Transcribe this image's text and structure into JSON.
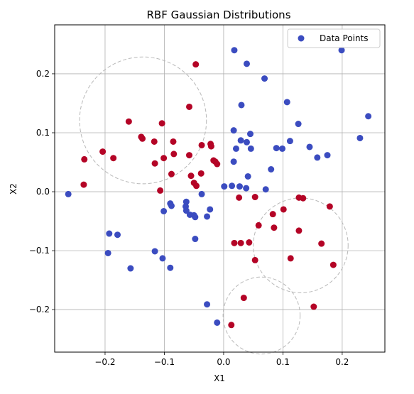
{
  "chart_data": {
    "type": "scatter",
    "title": "RBF Gaussian Distributions",
    "xlabel": "X1",
    "ylabel": "X2",
    "xlim": [
      -0.285,
      0.272
    ],
    "ylim": [
      -0.272,
      0.283
    ],
    "xticks": [
      -0.2,
      -0.1,
      0.0,
      0.1,
      0.2
    ],
    "xtick_labels": [
      "−0.2",
      "−0.1",
      "0.0",
      "0.1",
      "0.2"
    ],
    "yticks": [
      -0.2,
      -0.1,
      0.0,
      0.1,
      0.2
    ],
    "ytick_labels": [
      "−0.2",
      "−0.1",
      "0.0",
      "0.1",
      "0.2"
    ],
    "grid": true,
    "legend": {
      "entries": [
        "Data Points"
      ],
      "position": "top-right"
    },
    "colors": {
      "blue": "#3b4cc0",
      "red": "#b40426",
      "circle": "#b8b8b8",
      "grid": "#b0b0b0"
    },
    "circles": [
      {
        "cx": -0.136,
        "cy": 0.121,
        "r": 0.107
      },
      {
        "cx": 0.13,
        "cy": -0.091,
        "r": 0.08
      },
      {
        "cx": 0.064,
        "cy": -0.21,
        "r": 0.065
      }
    ],
    "series": [
      {
        "color_key": "blue",
        "points": [
          [
            0.018,
            0.24
          ],
          [
            0.039,
            0.217
          ],
          [
            0.069,
            0.192
          ],
          [
            0.199,
            0.24
          ],
          [
            0.244,
            0.128
          ],
          [
            0.23,
            0.091
          ],
          [
            0.03,
            0.147
          ],
          [
            0.107,
            0.152
          ],
          [
            0.126,
            0.115
          ],
          [
            0.017,
            0.104
          ],
          [
            0.045,
            0.098
          ],
          [
            0.021,
            0.073
          ],
          [
            0.029,
            0.087
          ],
          [
            0.039,
            0.084
          ],
          [
            0.046,
            0.073
          ],
          [
            0.112,
            0.086
          ],
          [
            0.089,
            0.074
          ],
          [
            0.099,
            0.073
          ],
          [
            0.145,
            0.076
          ],
          [
            0.175,
            0.062
          ],
          [
            0.158,
            0.058
          ],
          [
            0.017,
            0.051
          ],
          [
            0.08,
            0.038
          ],
          [
            0.041,
            0.026
          ],
          [
            0.001,
            0.009
          ],
          [
            0.014,
            0.01
          ],
          [
            0.027,
            0.009
          ],
          [
            0.038,
            0.006
          ],
          [
            0.071,
            0.004
          ],
          [
            -0.262,
            -0.004
          ],
          [
            -0.037,
            -0.004
          ],
          [
            -0.063,
            -0.017
          ],
          [
            -0.064,
            -0.025
          ],
          [
            -0.063,
            -0.032
          ],
          [
            -0.09,
            -0.02
          ],
          [
            -0.088,
            -0.024
          ],
          [
            -0.101,
            -0.033
          ],
          [
            -0.057,
            -0.039
          ],
          [
            -0.05,
            -0.04
          ],
          [
            -0.048,
            -0.043
          ],
          [
            -0.023,
            -0.03
          ],
          [
            -0.028,
            -0.042
          ],
          [
            -0.048,
            -0.08
          ],
          [
            -0.193,
            -0.071
          ],
          [
            -0.179,
            -0.073
          ],
          [
            -0.195,
            -0.104
          ],
          [
            -0.116,
            -0.101
          ],
          [
            -0.103,
            -0.113
          ],
          [
            -0.157,
            -0.13
          ],
          [
            -0.09,
            -0.129
          ],
          [
            -0.028,
            -0.191
          ],
          [
            -0.011,
            -0.222
          ]
        ]
      },
      {
        "color_key": "red",
        "points": [
          [
            -0.047,
            0.216
          ],
          [
            -0.058,
            0.144
          ],
          [
            -0.16,
            0.119
          ],
          [
            -0.104,
            0.116
          ],
          [
            -0.139,
            0.093
          ],
          [
            -0.137,
            0.09
          ],
          [
            -0.117,
            0.085
          ],
          [
            -0.085,
            0.085
          ],
          [
            -0.022,
            0.081
          ],
          [
            -0.037,
            0.079
          ],
          [
            -0.021,
            0.077
          ],
          [
            -0.204,
            0.068
          ],
          [
            -0.084,
            0.064
          ],
          [
            -0.058,
            0.062
          ],
          [
            -0.186,
            0.057
          ],
          [
            -0.101,
            0.057
          ],
          [
            -0.235,
            0.055
          ],
          [
            -0.017,
            0.053
          ],
          [
            -0.014,
            0.051
          ],
          [
            -0.116,
            0.048
          ],
          [
            -0.011,
            0.047
          ],
          [
            -0.088,
            0.03
          ],
          [
            -0.038,
            0.031
          ],
          [
            -0.055,
            0.027
          ],
          [
            -0.05,
            0.015
          ],
          [
            -0.046,
            0.01
          ],
          [
            -0.236,
            0.012
          ],
          [
            -0.107,
            0.002
          ],
          [
            0.053,
            -0.009
          ],
          [
            0.026,
            -0.01
          ],
          [
            0.127,
            -0.01
          ],
          [
            0.134,
            -0.011
          ],
          [
            0.179,
            -0.025
          ],
          [
            0.101,
            -0.03
          ],
          [
            0.083,
            -0.038
          ],
          [
            0.059,
            -0.057
          ],
          [
            0.085,
            -0.061
          ],
          [
            0.127,
            -0.066
          ],
          [
            0.018,
            -0.087
          ],
          [
            0.029,
            -0.087
          ],
          [
            0.043,
            -0.086
          ],
          [
            0.165,
            -0.088
          ],
          [
            0.113,
            -0.113
          ],
          [
            0.053,
            -0.116
          ],
          [
            0.185,
            -0.124
          ],
          [
            0.034,
            -0.18
          ],
          [
            0.152,
            -0.195
          ],
          [
            0.013,
            -0.226
          ]
        ]
      }
    ]
  }
}
